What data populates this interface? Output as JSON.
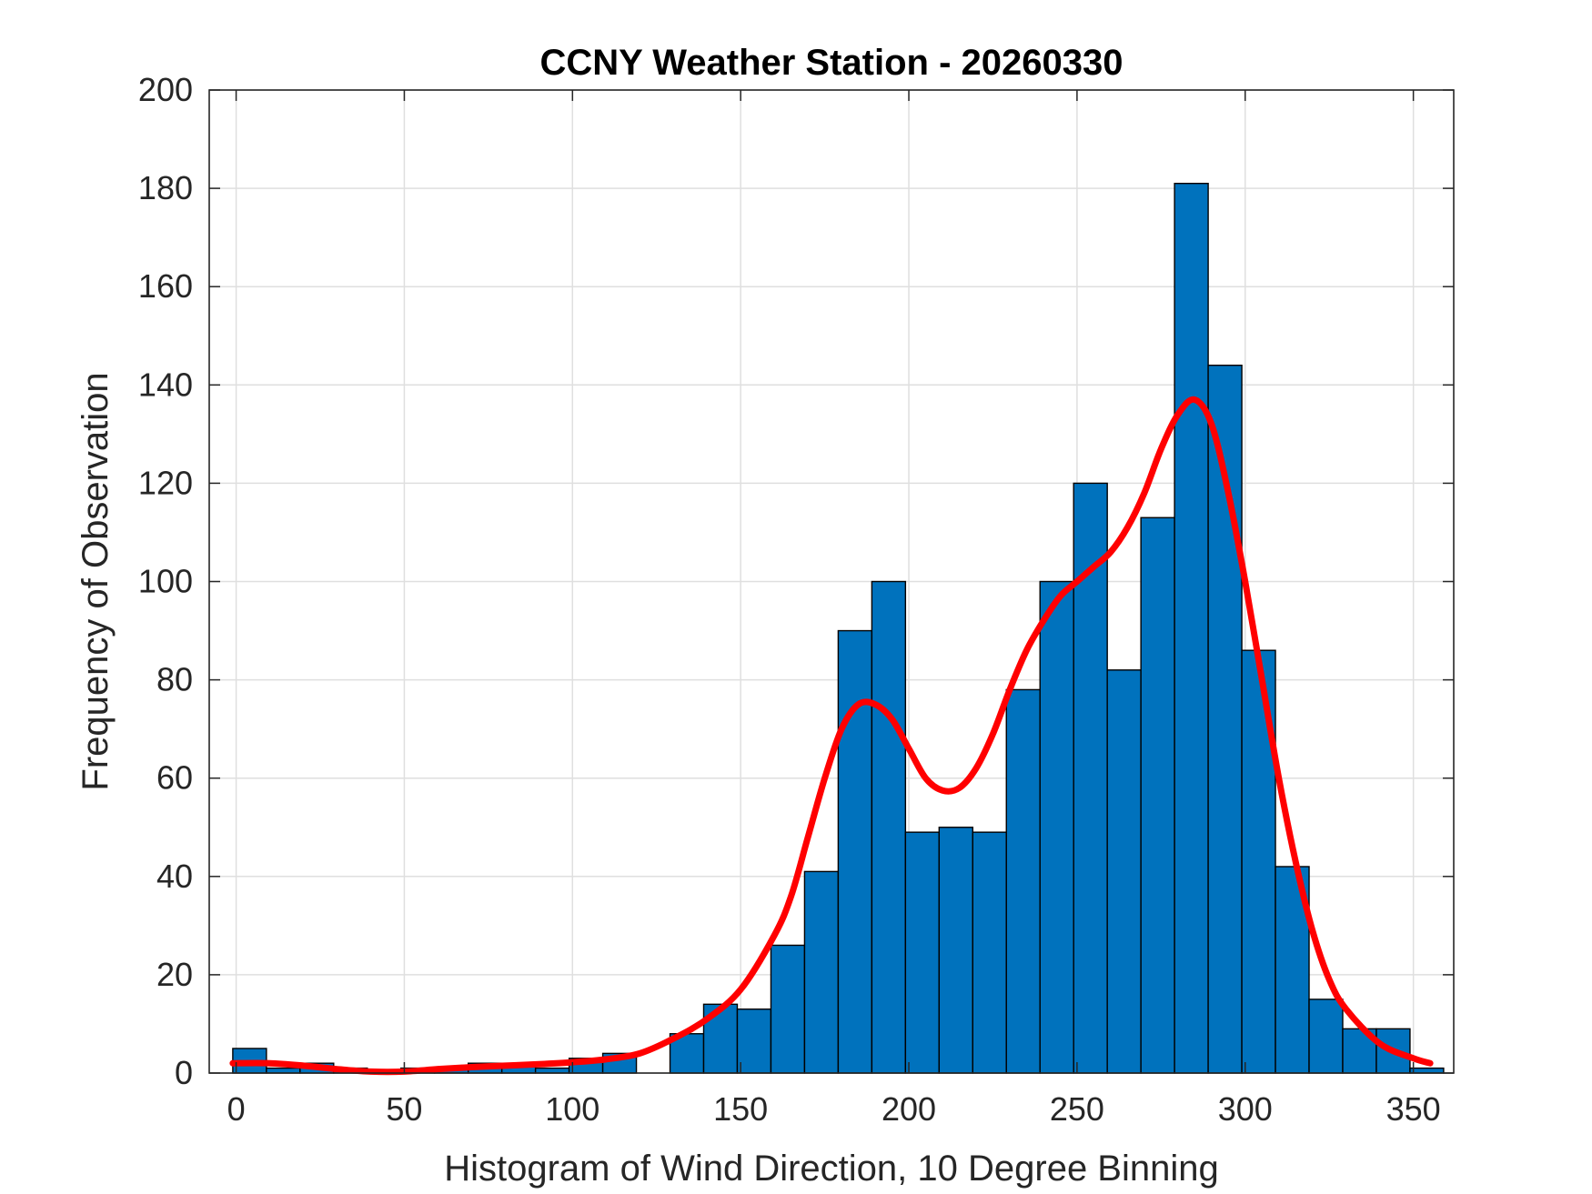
{
  "chart_data": {
    "type": "bar",
    "title": "CCNY Weather Station - 20260330",
    "xlabel": "Histogram of Wind Direction, 10 Degree Binning",
    "ylabel": "Frequency of Observation",
    "xlim": [
      -8,
      362
    ],
    "ylim": [
      0,
      200
    ],
    "xticks": [
      0,
      50,
      100,
      150,
      200,
      250,
      300,
      350
    ],
    "yticks": [
      0,
      20,
      40,
      60,
      80,
      100,
      120,
      140,
      160,
      180,
      200
    ],
    "grid": true,
    "bin_width": 10,
    "bins": [
      {
        "start": 0,
        "count": 5
      },
      {
        "start": 10,
        "count": 1
      },
      {
        "start": 20,
        "count": 2
      },
      {
        "start": 30,
        "count": 1
      },
      {
        "start": 40,
        "count": 0
      },
      {
        "start": 50,
        "count": 1
      },
      {
        "start": 60,
        "count": 1
      },
      {
        "start": 70,
        "count": 2
      },
      {
        "start": 80,
        "count": 2
      },
      {
        "start": 90,
        "count": 1
      },
      {
        "start": 100,
        "count": 3
      },
      {
        "start": 110,
        "count": 4
      },
      {
        "start": 120,
        "count": 0
      },
      {
        "start": 130,
        "count": 8
      },
      {
        "start": 140,
        "count": 14
      },
      {
        "start": 150,
        "count": 13
      },
      {
        "start": 160,
        "count": 26
      },
      {
        "start": 170,
        "count": 41
      },
      {
        "start": 180,
        "count": 90
      },
      {
        "start": 190,
        "count": 100
      },
      {
        "start": 200,
        "count": 49
      },
      {
        "start": 210,
        "count": 50
      },
      {
        "start": 220,
        "count": 49
      },
      {
        "start": 230,
        "count": 78
      },
      {
        "start": 240,
        "count": 100
      },
      {
        "start": 250,
        "count": 120
      },
      {
        "start": 260,
        "count": 82
      },
      {
        "start": 270,
        "count": 113
      },
      {
        "start": 280,
        "count": 181
      },
      {
        "start": 290,
        "count": 144
      },
      {
        "start": 300,
        "count": 86
      },
      {
        "start": 310,
        "count": 42
      },
      {
        "start": 320,
        "count": 15
      },
      {
        "start": 330,
        "count": 9
      },
      {
        "start": 340,
        "count": 9
      },
      {
        "start": 350,
        "count": 1
      }
    ],
    "fit_curve": {
      "x": [
        -1,
        10,
        20,
        30,
        40,
        50,
        60,
        70,
        80,
        90,
        100,
        110,
        120,
        130,
        140,
        150,
        160,
        165,
        170,
        175,
        180,
        185,
        190,
        195,
        200,
        205,
        210,
        215,
        220,
        225,
        230,
        235,
        240,
        245,
        250,
        255,
        260,
        265,
        270,
        275,
        280,
        285,
        290,
        295,
        300,
        305,
        310,
        315,
        320,
        325,
        330,
        340,
        350,
        355
      ],
      "y": [
        2,
        2,
        1.5,
        0.8,
        0.3,
        0.3,
        0.8,
        1.2,
        1.5,
        1.8,
        2.2,
        2.8,
        4,
        7,
        11,
        17,
        28,
        36,
        48,
        60,
        70,
        75,
        75,
        72,
        66,
        60,
        57.5,
        58,
        62,
        69,
        78,
        86,
        92,
        97,
        100,
        103,
        106,
        111,
        118,
        127,
        134,
        137,
        132,
        118,
        100,
        80,
        60,
        43,
        29,
        19,
        13,
        6,
        3,
        2
      ]
    },
    "bar_color": "#0072BD",
    "bar_edge_color": "#000000",
    "curve_color": "#FF0000"
  }
}
